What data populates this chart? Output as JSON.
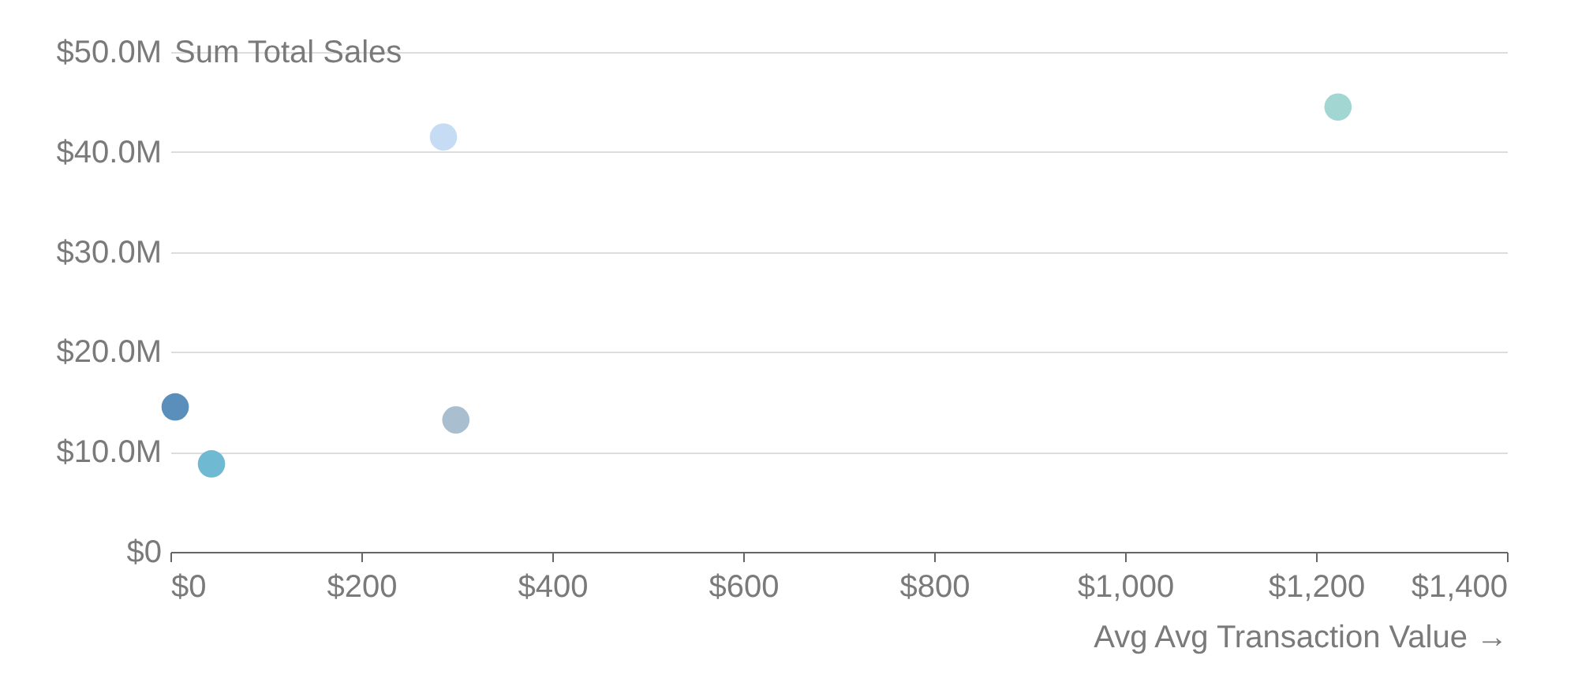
{
  "chart_data": {
    "type": "scatter",
    "xlabel": "Avg Avg Transaction Value →",
    "ylabel": "Sum Total Sales",
    "x": [
      286,
      1223,
      5,
      43,
      299
    ],
    "values": [
      41.5,
      44.5,
      14.5,
      8.8,
      13.2
    ],
    "colors": [
      "#c6dcf5",
      "#a2d6d2",
      "#5a8fbb",
      "#6fb9d2",
      "#a9bfcf"
    ],
    "xlim": [
      0,
      1400
    ],
    "xticks": [
      {
        "value": 0,
        "label": "$0"
      },
      {
        "value": 200,
        "label": "$200"
      },
      {
        "value": 400,
        "label": "$400"
      },
      {
        "value": 600,
        "label": "$600"
      },
      {
        "value": 800,
        "label": "$800"
      },
      {
        "value": 1000,
        "label": "$1,000"
      },
      {
        "value": 1200,
        "label": "$1,200"
      },
      {
        "value": 1400,
        "label": "$1,400"
      }
    ],
    "ylim": [
      0,
      50
    ],
    "yticks": [
      {
        "value": 0,
        "label": "$0"
      },
      {
        "value": 10,
        "label": "$10.0M"
      },
      {
        "value": 20,
        "label": "$20.0M"
      },
      {
        "value": 30,
        "label": "$30.0M"
      },
      {
        "value": 40,
        "label": "$40.0M"
      },
      {
        "value": 50,
        "label": "$50.0M"
      }
    ],
    "grid": "y",
    "marker": "circle",
    "legend": false
  }
}
